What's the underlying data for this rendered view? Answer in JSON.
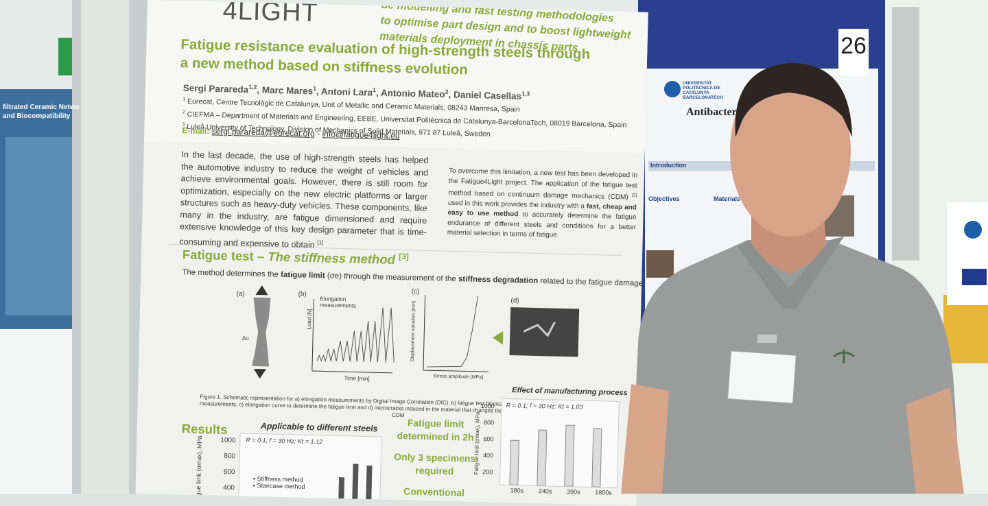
{
  "poster": {
    "logo": "4LIGHT",
    "tagline": [
      "ue modelling and fast testing methodologies",
      "to optimise part design and to boost lightweight",
      "materials deployment in chassis parts"
    ],
    "title": "Fatigue resistance evaluation of high-strength steels through a new method based on stiffness evolution",
    "authors": [
      {
        "name": "Sergi Parareda",
        "sup": "1,2"
      },
      {
        "name": "Marc Mares",
        "sup": "1"
      },
      {
        "name": "Antoni Lara",
        "sup": "1"
      },
      {
        "name": "Antonio Mateo",
        "sup": "2"
      },
      {
        "name": "Daniel Casellas",
        "sup": "1,3"
      }
    ],
    "affiliations": [
      {
        "sup": "1",
        "text": "Eurecat, Centre Tecnològic de Catalunya, Unit of Metallic and Ceramic Materials, 08243 Manresa, Spain"
      },
      {
        "sup": "2",
        "text": "CIEFMA – Department of Materials and Engineering, EEBE, Universitat Politècnica de Catalunya-BarcelonaTech, 08019 Barcelona, Spain"
      },
      {
        "sup": "3",
        "text": "Luleå University of Technology, Division of Mechanics of Solid Materials, 971 87 Luleå, Sweden"
      }
    ],
    "email_label": "E-mail:",
    "emails": [
      "sergi.parareda@eurecat.org",
      "info@fatigue4light.eu"
    ],
    "email_separator": "-",
    "intro_left": "In the last decade, the use of high-strength steels has helped the automotive industry to reduce the weight of vehicles and achieve environmental goals. However, there is still room for optimization, especially on the new electric platforms or larger structures such as heavy-duty vehicles. These components, like many in the industry, are fatigue dimensioned and require extensive knowledge of this key design parameter that is time-consuming and expensive to obtain",
    "intro_left_ref": "[1]",
    "intro_right": {
      "before": "To overcome this limitation, a new test has been developed in the Fatigue4Light project. The application of the fatigue test method based on continuum damage mechanics (CDM)",
      "ref": "[2]",
      "middle": "used in this work provides the industry with a",
      "bold": "fast, cheap and easy to use method",
      "after": "to accurately determine the fatigue endurance of different steels and conditions for a better material selection in terms of fatigue."
    },
    "section_heading": {
      "main": "Fatigue test –",
      "italic": "The stiffness method",
      "ref": "[3]"
    },
    "method_sentence": {
      "a": "The method determines the",
      "b": "fatigue limit",
      "c": "(σe) through the measurement of the",
      "d": "stiffness degradation",
      "e": "related to the fatigue damage (D)."
    },
    "figure": {
      "panels": [
        "(a)",
        "(b)",
        "(c)",
        "(d)"
      ],
      "elongation": "Elongation measurements",
      "delta_u": "Δu",
      "load_axis": "Load [N]",
      "time_axis": "Time [min]",
      "disp_axis": "Displacement variation [mm]",
      "stress_axis": "Stress amplitude [MPa]",
      "caption": "Figure 1. Schematic representation for a) elongation measurements by Digital Image Correlation (DIC), b) fatigue test blocks with increasing amplitude and stiffness measurements, c) elongation curve to determine the fatigue limit and d) microcracks induced in the material that changes the stiffness measurements and related to CDM"
    },
    "results": {
      "heading": "Results",
      "chart1": {
        "title": "Applicable to different steels",
        "params": "R = 0.1; f = 30 Hz; Kt = 1.12",
        "ylabel": "Fatigue limit (σmax), MPa",
        "yticks": [
          "1000",
          "800",
          "600",
          "400"
        ],
        "legend": [
          "Stiffness method",
          "Staircase method"
        ]
      },
      "middle": [
        "Fatigue limit determined in 2h",
        "Only 3 specimens required",
        "Conventional"
      ],
      "chart2": {
        "title": "Effect of manufacturing process",
        "params": "R = 0.1; f = 30 Hz; Kt = 1.03",
        "ylabel": "Fatigue limit (σmax), MPa",
        "yticks": [
          "1000",
          "800",
          "600",
          "400",
          "200"
        ],
        "categories": [
          "180s",
          "240s",
          "390s",
          "1800s"
        ]
      }
    }
  },
  "right_poster": {
    "board_number": "26",
    "university": "UNIVERSITAT POLITÈCNICA DE CATALUNYA BARCELONATECH",
    "title": "Antibacterial a",
    "sections": [
      "Introduction",
      "Objectives",
      "Materials & M"
    ]
  },
  "left_poster": {
    "title": [
      "filtrated Ceramic Netwo",
      "and Biocompatibility"
    ]
  }
}
